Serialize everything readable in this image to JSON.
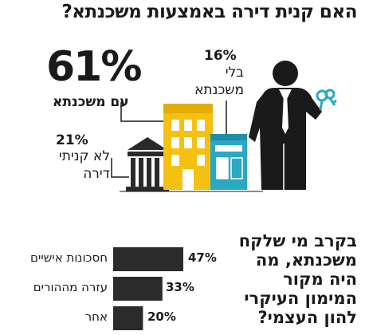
{
  "title": "האם קנית דירה באמצעות משכנתא?",
  "colors": {
    "mortgage": "#f5c010",
    "without_mortgage": "#2aa8c4",
    "didnt_buy": "#2b2b2b",
    "text": "#1a1a1a"
  },
  "chart_data": [
    {
      "type": "pie",
      "title": "האם קנית דירה באמצעות משכנתא?",
      "categories": [
        "עם משכנתא",
        "בלי משכנתא",
        "לא קניתי דירה"
      ],
      "values": [
        61,
        16,
        21
      ],
      "value_labels": [
        "61%",
        "16%",
        "21%"
      ]
    },
    {
      "type": "bar",
      "title": "בקרב מי שלקח משכנתא, מה היה מקור המימון העיקרי להון העצמי?",
      "categories": [
        "חסכונות אישיים",
        "עזרה מההורים",
        "אחר"
      ],
      "values": [
        47,
        33,
        20
      ],
      "value_labels": [
        "47%",
        "33%",
        "20%"
      ]
    }
  ],
  "question_lines": [
    "בקרב מי שלקח",
    "משכנתא, מה",
    "היה מקור",
    "המימון העיקרי",
    "להון העצמי?"
  ],
  "icons": {
    "person": "businessman-icon",
    "keys": "keys-icon",
    "bank": "bank-building-icon",
    "apartment": "apartment-building-icon",
    "shop": "shop-building-icon"
  }
}
